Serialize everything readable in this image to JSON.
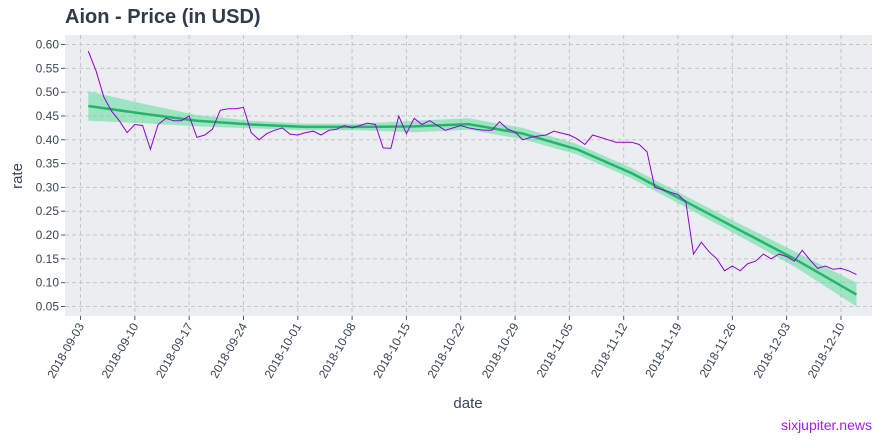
{
  "title": "Aion - Price (in USD)",
  "watermark": "sixjupiter.news",
  "colors": {
    "panel_bg": "#eaeef0",
    "grid": "#c2c6c9",
    "price_line": "#9400d3",
    "trend_line": "#22b56b",
    "trend_band": "#5fdc9e"
  },
  "chart_data": {
    "type": "line",
    "title": "Aion - Price (in USD)",
    "xlabel": "date",
    "ylabel": "rate",
    "xlim": [
      "2018-09-01",
      "2018-12-14"
    ],
    "ylim": [
      0.03,
      0.62
    ],
    "grid": true,
    "x_ticks": [
      "2018-09-03",
      "2018-09-10",
      "2018-09-17",
      "2018-09-24",
      "2018-10-01",
      "2018-10-08",
      "2018-10-15",
      "2018-10-22",
      "2018-10-29",
      "2018-11-05",
      "2018-11-12",
      "2018-11-19",
      "2018-11-26",
      "2018-12-03",
      "2018-12-10"
    ],
    "y_ticks": [
      "0.05",
      "0.10",
      "0.15",
      "0.20",
      "0.25",
      "0.30",
      "0.35",
      "0.40",
      "0.45",
      "0.50",
      "0.55",
      "0.60"
    ],
    "series": [
      {
        "x": [
          "2018-09-04",
          "2018-09-05",
          "2018-09-06",
          "2018-09-07",
          "2018-09-08",
          "2018-09-09",
          "2018-09-10",
          "2018-09-11",
          "2018-09-12",
          "2018-09-13",
          "2018-09-14",
          "2018-09-15",
          "2018-09-16",
          "2018-09-17",
          "2018-09-18",
          "2018-09-19",
          "2018-09-20",
          "2018-09-21",
          "2018-09-22",
          "2018-09-23",
          "2018-09-24",
          "2018-09-25",
          "2018-09-26",
          "2018-09-27",
          "2018-09-28",
          "2018-09-29",
          "2018-09-30",
          "2018-10-01",
          "2018-10-02",
          "2018-10-03",
          "2018-10-04",
          "2018-10-05",
          "2018-10-06",
          "2018-10-07",
          "2018-10-08",
          "2018-10-09",
          "2018-10-10",
          "2018-10-11",
          "2018-10-12",
          "2018-10-13",
          "2018-10-14",
          "2018-10-15",
          "2018-10-16",
          "2018-10-17",
          "2018-10-18",
          "2018-10-19",
          "2018-10-20",
          "2018-10-21",
          "2018-10-22",
          "2018-10-23",
          "2018-10-24",
          "2018-10-25",
          "2018-10-26",
          "2018-10-27",
          "2018-10-28",
          "2018-10-29",
          "2018-10-30",
          "2018-10-31",
          "2018-11-01",
          "2018-11-02",
          "2018-11-03",
          "2018-11-04",
          "2018-11-05",
          "2018-11-06",
          "2018-11-07",
          "2018-11-08",
          "2018-11-09",
          "2018-11-10",
          "2018-11-11",
          "2018-11-12",
          "2018-11-13",
          "2018-11-14",
          "2018-11-15",
          "2018-11-16",
          "2018-11-17",
          "2018-11-18",
          "2018-11-19",
          "2018-11-20",
          "2018-11-21",
          "2018-11-22",
          "2018-11-23",
          "2018-11-24",
          "2018-11-25",
          "2018-11-26",
          "2018-11-27",
          "2018-11-28",
          "2018-11-29",
          "2018-11-30",
          "2018-12-01",
          "2018-12-02",
          "2018-12-03",
          "2018-12-04",
          "2018-12-05",
          "2018-12-06",
          "2018-12-07",
          "2018-12-08",
          "2018-12-09",
          "2018-12-10",
          "2018-12-11",
          "2018-12-12"
        ],
        "values": [
          0.586,
          0.545,
          0.49,
          0.46,
          0.44,
          0.415,
          0.432,
          0.43,
          0.38,
          0.432,
          0.445,
          0.44,
          0.44,
          0.45,
          0.405,
          0.41,
          0.422,
          0.462,
          0.465,
          0.465,
          0.468,
          0.415,
          0.4,
          0.413,
          0.42,
          0.425,
          0.412,
          0.41,
          0.415,
          0.418,
          0.41,
          0.42,
          0.422,
          0.43,
          0.425,
          0.43,
          0.435,
          0.432,
          0.383,
          0.382,
          0.45,
          0.413,
          0.445,
          0.432,
          0.44,
          0.43,
          0.42,
          0.425,
          0.43,
          0.425,
          0.422,
          0.42,
          0.42,
          0.438,
          0.423,
          0.416,
          0.4,
          0.405,
          0.408,
          0.41,
          0.418,
          0.414,
          0.41,
          0.402,
          0.39,
          0.41,
          0.405,
          0.4,
          0.395,
          0.395,
          0.395,
          0.39,
          0.375,
          0.3,
          0.295,
          0.29,
          0.285,
          0.27,
          0.16,
          0.185,
          0.165,
          0.15,
          0.125,
          0.135,
          0.125,
          0.14,
          0.145,
          0.16,
          0.15,
          0.16,
          0.155,
          0.145,
          0.168,
          0.148,
          0.13,
          0.135,
          0.128,
          0.13,
          0.125,
          0.117
        ]
      },
      {
        "x": [
          "2018-09-04",
          "2018-09-11",
          "2018-09-18",
          "2018-09-25",
          "2018-10-02",
          "2018-10-09",
          "2018-10-16",
          "2018-10-23",
          "2018-10-30",
          "2018-11-06",
          "2018-11-13",
          "2018-11-20",
          "2018-11-27",
          "2018-12-04",
          "2018-12-12"
        ],
        "values": [
          0.471,
          0.455,
          0.44,
          0.432,
          0.427,
          0.427,
          0.428,
          0.433,
          0.413,
          0.38,
          0.33,
          0.27,
          0.21,
          0.15,
          0.075
        ],
        "lower": [
          0.44,
          0.435,
          0.428,
          0.424,
          0.42,
          0.42,
          0.416,
          0.421,
          0.401,
          0.369,
          0.319,
          0.258,
          0.197,
          0.134,
          0.05
        ],
        "upper": [
          0.502,
          0.476,
          0.452,
          0.44,
          0.434,
          0.434,
          0.44,
          0.445,
          0.425,
          0.391,
          0.341,
          0.282,
          0.223,
          0.166,
          0.1
        ]
      }
    ]
  }
}
